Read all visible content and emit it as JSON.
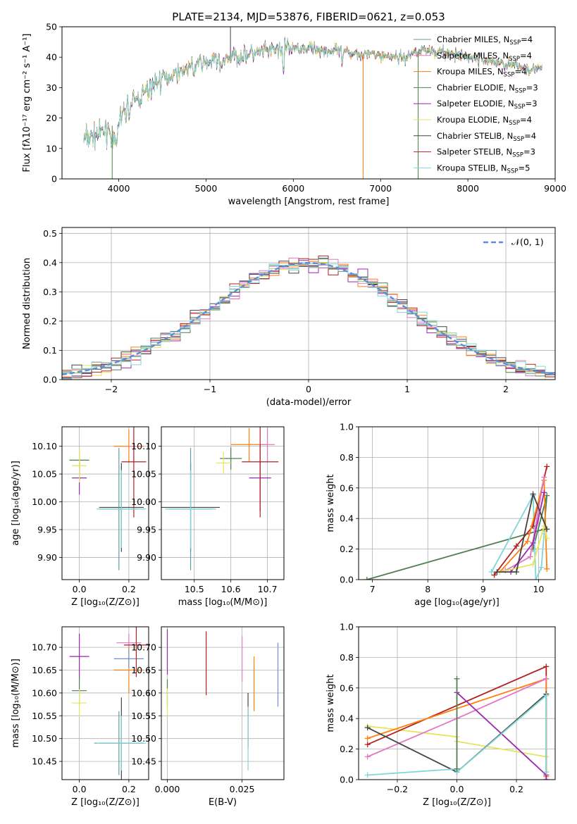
{
  "title": "PLATE=2134, MJD=53876, FIBERID=0621, z=0.053",
  "colors": [
    "#5f9ea0",
    "#e377c2",
    "#ff7f0e",
    "#4f7f4f",
    "#9c27b0",
    "#e5e55c",
    "#444444",
    "#b22222",
    "#7fd6d8"
  ],
  "chart_data": [
    {
      "type": "line",
      "name": "spectrum",
      "xlabel": "wavelength [Angstrom, rest frame]",
      "ylabel": "Flux [fλ10⁻¹⁷ erg cm⁻² s⁻¹ A⁻¹]",
      "xlim": [
        3350,
        9000
      ],
      "ylim": [
        0,
        50
      ],
      "xticks": [
        "4000",
        "5000",
        "6000",
        "7000",
        "8000",
        "9000"
      ],
      "yticks": [
        "0",
        "10",
        "20",
        "30",
        "40",
        "50"
      ],
      "legend": [
        {
          "label": "Chabrier MILES, N_SSP=4",
          "pre": "Chabrier MILES, N",
          "sub": "SSP",
          "post": "=4"
        },
        {
          "label": "Salpeter MILES, N_SSP=4",
          "pre": "Salpeter MILES, N",
          "sub": "SSP",
          "post": "=4"
        },
        {
          "label": "Kroupa MILES, N_SSP=4",
          "pre": "Kroupa MILES, N",
          "sub": "SSP",
          "post": "=4"
        },
        {
          "label": "Chabrier ELODIE, N_SSP=3",
          "pre": "Chabrier ELODIE, N",
          "sub": "SSP",
          "post": "=3"
        },
        {
          "label": "Salpeter ELODIE, N_SSP=3",
          "pre": "Salpeter ELODIE, N",
          "sub": "SSP",
          "post": "=3"
        },
        {
          "label": "Kroupa ELODIE, N_SSP=4",
          "pre": "Kroupa ELODIE, N",
          "sub": "SSP",
          "post": "=4"
        },
        {
          "label": "Chabrier STELIB, N_SSP=4",
          "pre": "Chabrier STELIB, N",
          "sub": "SSP",
          "post": "=4"
        },
        {
          "label": "Salpeter STELIB, N_SSP=3",
          "pre": "Salpeter STELIB, N",
          "sub": "SSP",
          "post": "=3"
        },
        {
          "label": "Kroupa STELIB, N_SSP=5",
          "pre": "Kroupa STELIB, N",
          "sub": "SSP",
          "post": "=5"
        }
      ],
      "continuum": [
        [
          3600,
          13
        ],
        [
          3700,
          14
        ],
        [
          3800,
          15
        ],
        [
          3900,
          17
        ],
        [
          4000,
          19
        ],
        [
          4100,
          23
        ],
        [
          4200,
          26
        ],
        [
          4300,
          28
        ],
        [
          4400,
          31
        ],
        [
          4500,
          33
        ],
        [
          4600,
          34
        ],
        [
          4700,
          35.5
        ],
        [
          4800,
          36.5
        ],
        [
          4900,
          38
        ],
        [
          5000,
          38
        ],
        [
          5100,
          39
        ],
        [
          5200,
          39.5
        ],
        [
          5300,
          40
        ],
        [
          5400,
          40.5
        ],
        [
          5500,
          41
        ],
        [
          5600,
          41.5
        ],
        [
          5700,
          42
        ],
        [
          5800,
          42.5
        ],
        [
          5900,
          43
        ],
        [
          6000,
          43
        ],
        [
          6100,
          43
        ],
        [
          6200,
          43
        ],
        [
          6300,
          42.5
        ],
        [
          6400,
          42
        ],
        [
          6500,
          42
        ],
        [
          6600,
          41.5
        ],
        [
          6700,
          41.5
        ],
        [
          6800,
          41
        ],
        [
          6900,
          41
        ],
        [
          7000,
          40.5
        ],
        [
          7100,
          40.5
        ],
        [
          7200,
          40
        ],
        [
          7300,
          40
        ],
        [
          7400,
          42
        ],
        [
          7500,
          42.5
        ],
        [
          7600,
          42
        ],
        [
          7700,
          41.5
        ],
        [
          7800,
          41
        ],
        [
          7900,
          40.5
        ],
        [
          8000,
          40
        ],
        [
          8100,
          39.5
        ],
        [
          8200,
          39
        ],
        [
          8300,
          38.5
        ],
        [
          8400,
          38
        ],
        [
          8500,
          37.5
        ],
        [
          8600,
          37
        ],
        [
          8700,
          36.5
        ],
        [
          8800,
          36
        ],
        [
          8850,
          36
        ]
      ],
      "wmin": 3600,
      "wmax": 8850
    },
    {
      "type": "histogram",
      "name": "residuals",
      "xlabel": "(data-model)/error",
      "ylabel": "Normed distribution",
      "xlim": [
        -2.5,
        2.5
      ],
      "ylim": [
        0,
        0.52
      ],
      "xticks": [
        "−2",
        "−1",
        "0",
        "1",
        "2"
      ],
      "yticks": [
        "0.0",
        "0.1",
        "0.2",
        "0.3",
        "0.4",
        "0.5"
      ],
      "legend": "𝒩(0, 1)",
      "bin_width": 0.1,
      "bin_start": -2.5
    },
    {
      "type": "scatter",
      "name": "age-vs-Z",
      "xlabel": "Z [log₁₀(Z/Z⊙)]",
      "ylabel": "age  [log₁₀(age/yr)]",
      "xlim": [
        -0.07,
        0.28
      ],
      "ylim": [
        9.86,
        10.135
      ],
      "xticks": [
        "0.0",
        "0.2"
      ],
      "yticks": [
        "9.90",
        "9.95",
        "10.00",
        "10.05",
        "10.10"
      ],
      "points": [
        {
          "x": 0.2,
          "y": 10.1,
          "xe": 0.06,
          "ye": 0.03,
          "c": 2
        },
        {
          "x": 0.22,
          "y": 10.1,
          "xe": 0.02,
          "ye": 0.03,
          "c": 1
        },
        {
          "x": 0.0,
          "y": 10.075,
          "xe": 0.04,
          "ye": 0.02,
          "c": 3
        },
        {
          "x": 0.0,
          "y": 10.043,
          "xe": 0.03,
          "ye": 0.03,
          "c": 4
        },
        {
          "x": 0.0,
          "y": 10.065,
          "xe": 0.03,
          "ye": 0.03,
          "c": 5
        },
        {
          "x": 0.22,
          "y": 10.072,
          "xe": 0.05,
          "ye": 0.1,
          "c": 7
        },
        {
          "x": 0.17,
          "y": 9.99,
          "xe": 0.09,
          "ye": 0.08,
          "c": 6
        },
        {
          "x": 0.16,
          "y": 9.987,
          "xe": 0.08,
          "ye": 0.11,
          "c": 0
        },
        {
          "x": 0.17,
          "y": 9.987,
          "xe": 0.1,
          "ye": 0.07,
          "c": 8
        }
      ]
    },
    {
      "type": "scatter",
      "name": "age-vs-mass",
      "xlabel": "mass [log₁₀(M/M⊙)]",
      "ylabel": "",
      "xlim": [
        10.41,
        10.745
      ],
      "ylim": [
        9.86,
        10.135
      ],
      "xticks": [
        "10.5",
        "10.6",
        "10.7"
      ],
      "yticks": [
        "9.90",
        "9.95",
        "10.00",
        "10.05",
        "10.10"
      ],
      "points": [
        {
          "x": 10.65,
          "y": 10.103,
          "xe": 0.05,
          "ye": 0.03,
          "c": 2
        },
        {
          "x": 10.7,
          "y": 10.103,
          "xe": 0.02,
          "ye": 0.03,
          "c": 1
        },
        {
          "x": 10.6,
          "y": 10.078,
          "xe": 0.03,
          "ye": 0.02,
          "c": 3
        },
        {
          "x": 10.68,
          "y": 10.043,
          "xe": 0.03,
          "ye": 0.06,
          "c": 4
        },
        {
          "x": 10.58,
          "y": 10.07,
          "xe": 0.02,
          "ye": 0.02,
          "c": 5
        },
        {
          "x": 10.68,
          "y": 10.072,
          "xe": 0.05,
          "ye": 0.1,
          "c": 7
        },
        {
          "x": 10.49,
          "y": 9.99,
          "xe": 0.08,
          "ye": 0.08,
          "c": 6
        },
        {
          "x": 10.49,
          "y": 9.987,
          "xe": 0.06,
          "ye": 0.11,
          "c": 0
        },
        {
          "x": 10.49,
          "y": 9.987,
          "xe": 0.07,
          "ye": 0.07,
          "c": 8
        }
      ]
    },
    {
      "type": "line",
      "name": "mass-weight-vs-age",
      "xlabel": "age  [log₁₀(age/yr)]",
      "ylabel": "mass weight",
      "xlim": [
        6.75,
        10.3
      ],
      "ylim": [
        0,
        1
      ],
      "xticks": [
        "7",
        "8",
        "9",
        "10"
      ],
      "yticks": [
        "0.0",
        "0.2",
        "0.4",
        "0.6",
        "0.8",
        "1.0"
      ],
      "series": [
        {
          "c": 3,
          "x": [
            6.9,
            10.1,
            10.15,
            9.9
          ],
          "y": [
            0.0,
            0.33,
            0.55,
            0.2
          ]
        },
        {
          "c": 8,
          "x": [
            9.15,
            9.9,
            9.95,
            10.05,
            10.1
          ],
          "y": [
            0.05,
            0.55,
            0.0,
            0.08,
            0.3
          ]
        },
        {
          "c": 7,
          "x": [
            9.2,
            9.6,
            9.9,
            10.15
          ],
          "y": [
            0.03,
            0.22,
            0.35,
            0.74
          ]
        },
        {
          "c": 2,
          "x": [
            9.3,
            9.8,
            10.1,
            10.15
          ],
          "y": [
            0.05,
            0.25,
            0.65,
            0.07
          ]
        },
        {
          "c": 1,
          "x": [
            9.4,
            9.85,
            10.1
          ],
          "y": [
            0.06,
            0.15,
            0.67
          ]
        },
        {
          "c": 4,
          "x": [
            9.5,
            9.9,
            10.1
          ],
          "y": [
            0.05,
            0.24,
            0.57
          ]
        },
        {
          "c": 5,
          "x": [
            9.3,
            9.9,
            10.1,
            10.15
          ],
          "y": [
            0.05,
            0.1,
            0.35,
            0.27
          ]
        },
        {
          "c": 6,
          "x": [
            9.25,
            9.6,
            9.9,
            10.15
          ],
          "y": [
            0.05,
            0.05,
            0.56,
            0.33
          ]
        }
      ]
    },
    {
      "type": "scatter",
      "name": "mass-vs-Z",
      "xlabel": "Z [log₁₀(Z/Z⊙)]",
      "ylabel": "mass [log₁₀(M/M⊙)]",
      "xlim": [
        -0.07,
        0.28
      ],
      "ylim": [
        10.41,
        10.745
      ],
      "xticks": [
        "0.0",
        "0.2"
      ],
      "yticks": [
        "10.45",
        "10.50",
        "10.55",
        "10.60",
        "10.65",
        "10.70"
      ],
      "points": [
        {
          "x": 0.2,
          "y": 10.71,
          "xe": 0.05,
          "ye": 0.02,
          "c": 1
        },
        {
          "x": 0.2,
          "y": 10.65,
          "xe": 0.06,
          "ye": 0.05,
          "c": 2
        },
        {
          "x": 0.2,
          "y": 10.675,
          "xe": 0.06,
          "ye": 0.02,
          "c": "blue"
        },
        {
          "x": 0.23,
          "y": 10.705,
          "xe": 0.05,
          "ye": 0.07,
          "c": 7
        },
        {
          "x": 0.0,
          "y": 10.68,
          "xe": 0.04,
          "ye": 0.05,
          "c": 4
        },
        {
          "x": 0.0,
          "y": 10.605,
          "xe": 0.03,
          "ye": 0.03,
          "c": 3
        },
        {
          "x": 0.0,
          "y": 10.578,
          "xe": 0.03,
          "ye": 0.03,
          "c": 5
        },
        {
          "x": 0.17,
          "y": 10.49,
          "xe": 0.09,
          "ye": 0.1,
          "c": 6
        },
        {
          "x": 0.16,
          "y": 10.49,
          "xe": 0.1,
          "ye": 0.07,
          "c": 0
        },
        {
          "x": 0.17,
          "y": 10.49,
          "xe": 0.1,
          "ye": 0.06,
          "c": 8
        }
      ]
    },
    {
      "type": "scatter",
      "name": "mass-vs-EBV",
      "xlabel": "E(B-V)",
      "ylabel": "",
      "xlim": [
        -0.002,
        0.039
      ],
      "ylim": [
        10.41,
        10.745
      ],
      "xticks": [
        "0.000",
        "0.025"
      ],
      "yticks": [
        "10.45",
        "10.50",
        "10.55",
        "10.60",
        "10.65",
        "10.70"
      ],
      "points": [
        {
          "x": 0.0,
          "y": 10.69,
          "xe": 0,
          "ye": 0.05,
          "c": 4
        },
        {
          "x": 0.0,
          "y": 10.6,
          "xe": 0,
          "ye": 0.03,
          "c": 3
        },
        {
          "x": 0.0,
          "y": 10.58,
          "xe": 0,
          "ye": 0.03,
          "c": 5
        },
        {
          "x": 0.013,
          "y": 10.665,
          "xe": 0,
          "ye": 0.07,
          "c": 7
        },
        {
          "x": 0.025,
          "y": 10.675,
          "xe": 0,
          "ye": 0.05,
          "c": 1
        },
        {
          "x": 0.027,
          "y": 10.54,
          "xe": 0,
          "ye": 0.06,
          "c": 6
        },
        {
          "x": 0.027,
          "y": 10.5,
          "xe": 0,
          "ye": 0.07,
          "c": 8
        },
        {
          "x": 0.029,
          "y": 10.62,
          "xe": 0,
          "ye": 0.06,
          "c": 2
        },
        {
          "x": 0.037,
          "y": 10.64,
          "xe": 0,
          "ye": 0.07,
          "c": "blue"
        }
      ]
    },
    {
      "type": "line",
      "name": "mass-weight-vs-Z",
      "xlabel": "Z [log₁₀(Z/Z⊙)]",
      "ylabel": "mass weight",
      "xlim": [
        -0.33,
        0.33
      ],
      "ylim": [
        0,
        1
      ],
      "xticks": [
        "−0.2",
        "0.0",
        "0.2"
      ],
      "yticks": [
        "0.0",
        "0.2",
        "0.4",
        "0.6",
        "0.8",
        "1.0"
      ],
      "series": [
        {
          "c": 5,
          "x": [
            -0.3,
            0.0,
            0.0,
            0.3
          ],
          "y": [
            0.35,
            0.28,
            0.25,
            0.15
          ]
        },
        {
          "c": 7,
          "x": [
            -0.3,
            0.3,
            0.3
          ],
          "y": [
            0.23,
            0.74,
            0.0
          ]
        },
        {
          "c": 2,
          "x": [
            -0.3,
            0.3,
            0.3
          ],
          "y": [
            0.27,
            0.66,
            0.02
          ]
        },
        {
          "c": 1,
          "x": [
            -0.3,
            0.0,
            0.3
          ],
          "y": [
            0.15,
            0.4,
            0.66
          ]
        },
        {
          "c": 4,
          "x": [
            0.0,
            0.3,
            0.3
          ],
          "y": [
            0.57,
            0.03,
            0.0
          ]
        },
        {
          "c": 6,
          "x": [
            -0.3,
            0.0,
            0.3
          ],
          "y": [
            0.34,
            0.05,
            0.56
          ]
        },
        {
          "c": 8,
          "x": [
            -0.3,
            0.0,
            0.0,
            0.3,
            0.3
          ],
          "y": [
            0.03,
            0.07,
            0.05,
            0.55,
            0.05
          ]
        },
        {
          "c": 3,
          "x": [
            0.0,
            0.0
          ],
          "y": [
            0.07,
            0.66
          ]
        }
      ]
    }
  ]
}
